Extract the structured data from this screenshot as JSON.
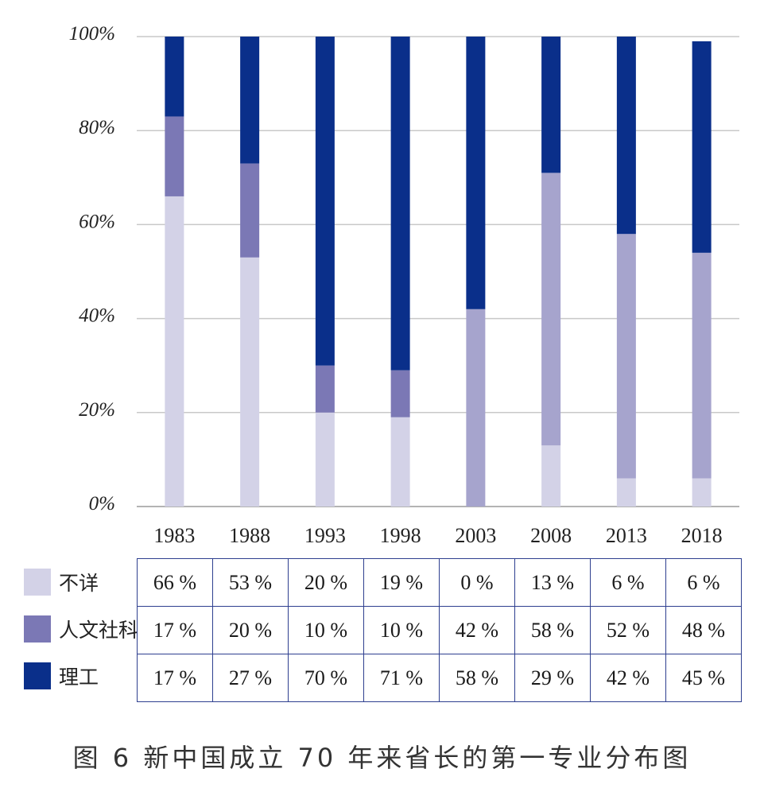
{
  "chart_data": {
    "type": "bar",
    "stacked": true,
    "categories": [
      "1983",
      "1988",
      "1993",
      "1998",
      "2003",
      "2008",
      "2013",
      "2018"
    ],
    "series": [
      {
        "name": "不详",
        "color": "#d3d2e7",
        "values": [
          66,
          53,
          20,
          19,
          0,
          13,
          6,
          6
        ]
      },
      {
        "name": "人文社科",
        "color": "#7b78b5",
        "alt_color": "#a6a4cd",
        "values": [
          17,
          20,
          10,
          10,
          42,
          58,
          52,
          48
        ]
      },
      {
        "name": "理工",
        "color": "#0a2f8a",
        "values": [
          17,
          27,
          70,
          71,
          58,
          29,
          42,
          45
        ]
      }
    ],
    "ylim": [
      0,
      100
    ],
    "yticks": [
      "0%",
      "20%",
      "40%",
      "60%",
      "80%",
      "100%"
    ],
    "grid": true,
    "table": [
      [
        "66 %",
        "53 %",
        "20 %",
        "19 %",
        "0 %",
        "13 %",
        "6 %",
        "6 %"
      ],
      [
        "17 %",
        "20 %",
        "10 %",
        "10 %",
        "42 %",
        "58 %",
        "52 %",
        "48 %"
      ],
      [
        "17 %",
        "27 %",
        "70 %",
        "71 %",
        "58 %",
        "29 %",
        "42 %",
        "45 %"
      ]
    ],
    "caption": "图 6  新中国成立 70 年来省长的第一专业分布图"
  }
}
